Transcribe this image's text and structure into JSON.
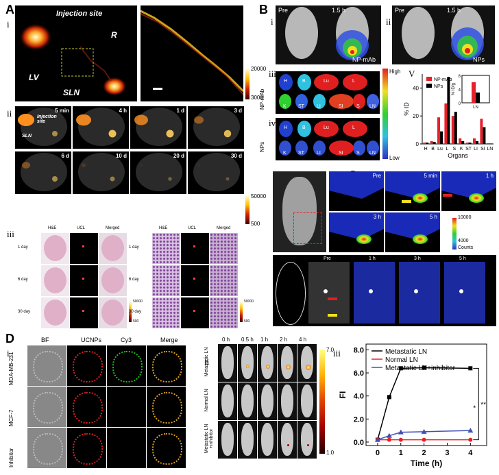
{
  "panelA": {
    "letter": "A",
    "sub_i": "i",
    "sub_ii": "ii",
    "sub_iii": "iii",
    "injection_site": "Injection site",
    "R": "R",
    "LV": "LV",
    "SLN": "SLN",
    "cbar_max": "20000",
    "cbar_min": "3000",
    "timepoints": [
      "5 min",
      "4 h",
      "1 d",
      "3 d",
      "6 d",
      "10 d",
      "20 d",
      "30 d"
    ],
    "inj_small": "Injection site",
    "sln_small": "SLN",
    "cbar2_max": "50000",
    "cbar2_min": "500",
    "hist_headers": [
      "H&E",
      "UCL",
      "Merged"
    ],
    "hist_rows": [
      "1 day",
      "6 day",
      "30 day"
    ],
    "hist_cbar_max": "50000",
    "hist_cbar_min": "500"
  },
  "panelB": {
    "letter": "B",
    "sub_i": "i",
    "sub_ii": "ii",
    "sub_iii": "iii",
    "sub_iv": "iv",
    "sub_v": "V",
    "pre": "Pre",
    "post": "1.5 h",
    "label_i": "NP-mAb",
    "label_ii": "NPs",
    "row_iii": "NP-mAb",
    "row_iv": "NPs",
    "high": "High",
    "low": "Low",
    "organ_letters_top": [
      "H",
      "B",
      "Lu",
      "L"
    ],
    "organ_letters_bot": [
      "K",
      "ST",
      "LI",
      "SI",
      "S",
      "LN"
    ]
  },
  "panelC": {
    "letter": "C",
    "times_top": [
      "Pre",
      "5 min",
      "1 h",
      "3 h",
      "5 h"
    ],
    "cbar_max": "10000",
    "cbar_mid": "4000",
    "cbar_label": "Counts",
    "times_bot": [
      "Pre",
      "1 h",
      "3 h",
      "5 h"
    ]
  },
  "panelD": {
    "letter": "D",
    "sub_i": "i",
    "sub_ii": "ii",
    "sub_iii": "iii",
    "col_headers": [
      "BF",
      "UCNPs",
      "Cy3",
      "Merge"
    ],
    "row_labels": [
      "MDA-MB-231",
      "MCF-7",
      "Inhibitor"
    ],
    "times": [
      "0 h",
      "0.5 h",
      "1 h",
      "2 h",
      "4 h"
    ],
    "mouse_rows": [
      "Metastatic LN",
      "Normal LN",
      "Metastatic LN +inhibitor"
    ],
    "cbar_max": "7.0",
    "cbar_min": "1.0"
  },
  "colors": {
    "npmab": "#e8202a",
    "nps": "#000000",
    "metastatic": "#000000",
    "normal": "#e8202a",
    "inhibitor": "#3f51b5"
  },
  "chart_data": [
    {
      "type": "bar",
      "ylabel": "% ID",
      "xlabel": "Organs",
      "categories": [
        "H",
        "B",
        "Lu",
        "L",
        "S",
        "K",
        "ST",
        "LI",
        "SI",
        "LN"
      ],
      "ylim": [
        0,
        50
      ],
      "yticks": [
        "0",
        "20",
        "40"
      ],
      "series": [
        {
          "name": "NP-mAb",
          "values": [
            1,
            2,
            19,
            29,
            20,
            4,
            1,
            4,
            18,
            0.5
          ]
        },
        {
          "name": "NPs",
          "values": [
            1,
            1.5,
            9,
            48,
            23,
            2,
            1,
            2,
            12,
            0.3
          ]
        }
      ],
      "inset": {
        "ylabel": "% ID/g",
        "categories": [
          "LN"
        ],
        "ylim": [
          0,
          8
        ],
        "yticks": [
          "0",
          "4",
          "8"
        ],
        "series": [
          {
            "name": "NP-mAb",
            "values": [
              6
            ]
          },
          {
            "name": "NPs",
            "values": [
              3
            ]
          }
        ]
      }
    },
    {
      "type": "line",
      "xlabel": "Time (h)",
      "ylabel": "FI",
      "x": [
        0,
        0.5,
        1,
        2,
        4
      ],
      "xlim": [
        -0.5,
        4.7
      ],
      "ylim": [
        -0.3,
        8.5
      ],
      "xticks": [
        "0",
        "1",
        "2",
        "3",
        "4"
      ],
      "yticks": [
        "0.0",
        "2.0",
        "4.0",
        "6.0",
        "8.0"
      ],
      "series": [
        {
          "name": "Metastatic LN",
          "values": [
            0.2,
            3.9,
            6.4,
            6.45,
            6.4
          ]
        },
        {
          "name": "Normal LN",
          "values": [
            0.2,
            0.2,
            0.2,
            0.2,
            0.2
          ]
        },
        {
          "name": "Metastatic LN+inhibitor",
          "values": [
            0.2,
            0.55,
            0.85,
            0.9,
            1.0
          ]
        }
      ],
      "significance": [
        "*",
        "**"
      ]
    }
  ]
}
